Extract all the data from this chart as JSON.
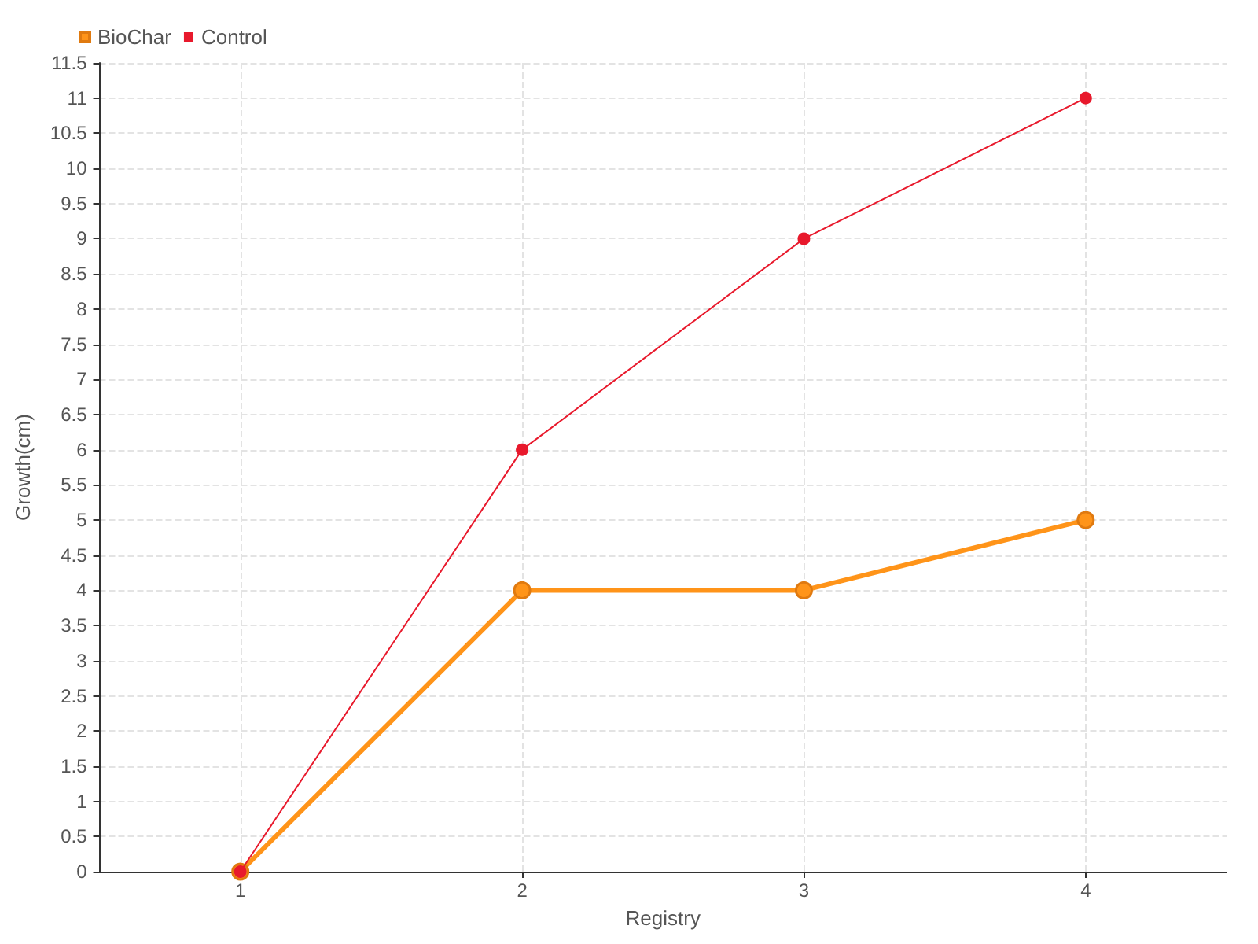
{
  "chart_data": {
    "type": "line",
    "xlabel": "Registry",
    "ylabel": "Growth(cm)",
    "x": [
      1,
      2,
      3,
      4
    ],
    "xlim": [
      0.5,
      4.5
    ],
    "xticks": [
      1,
      2,
      3,
      4
    ],
    "ylim": [
      0,
      11.5
    ],
    "yticks": [
      0,
      0.5,
      1,
      1.5,
      2,
      2.5,
      3,
      3.5,
      4,
      4.5,
      5,
      5.5,
      6,
      6.5,
      7,
      7.5,
      8,
      8.5,
      9,
      9.5,
      10,
      10.5,
      11,
      11.5
    ],
    "series": [
      {
        "name": "BioChar",
        "color": "#ff9419",
        "values": [
          0,
          4,
          4,
          5
        ]
      },
      {
        "name": "Control",
        "color": "#e8192c",
        "values": [
          0,
          6,
          9,
          11
        ]
      }
    ],
    "grid": true,
    "legend": "top left",
    "marker": "circle",
    "line_style": "solid"
  }
}
